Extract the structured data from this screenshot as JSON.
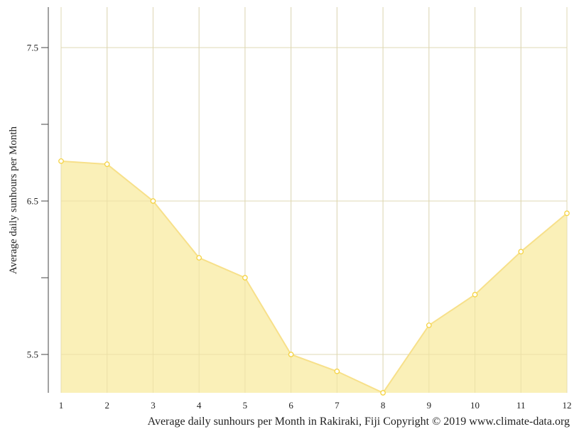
{
  "chart_data": {
    "type": "area",
    "title": "Average daily sunhours per Month in Rakiraki, Fiji Copyright © 2019 www.climate-data.org",
    "xlabel": "",
    "ylabel": "Average daily sunhours per Month",
    "categories": [
      "1",
      "2",
      "3",
      "4",
      "5",
      "6",
      "7",
      "8",
      "9",
      "10",
      "11",
      "12"
    ],
    "series": [
      {
        "name": "Average daily sunhours",
        "values": [
          6.76,
          6.74,
          6.5,
          6.13,
          6.0,
          5.5,
          5.39,
          5.25,
          5.69,
          5.89,
          6.17,
          6.42
        ],
        "color": "#f7dc6f"
      }
    ],
    "yticks": [
      {
        "value": 7.5,
        "label": "7.5"
      },
      {
        "value": 7.0,
        "label": ""
      },
      {
        "value": 6.5,
        "label": "6.5"
      },
      {
        "value": 6.0,
        "label": ""
      },
      {
        "value": 5.5,
        "label": "5.5"
      }
    ],
    "ylim": [
      5.25,
      7.76
    ],
    "grid": true,
    "legend": "none"
  },
  "colors": {
    "fill": "#f9eeb0",
    "line": "#f7e08a",
    "marker_stroke": "#f5d342",
    "grid": "#d4d4d4",
    "axis": "#444444"
  }
}
